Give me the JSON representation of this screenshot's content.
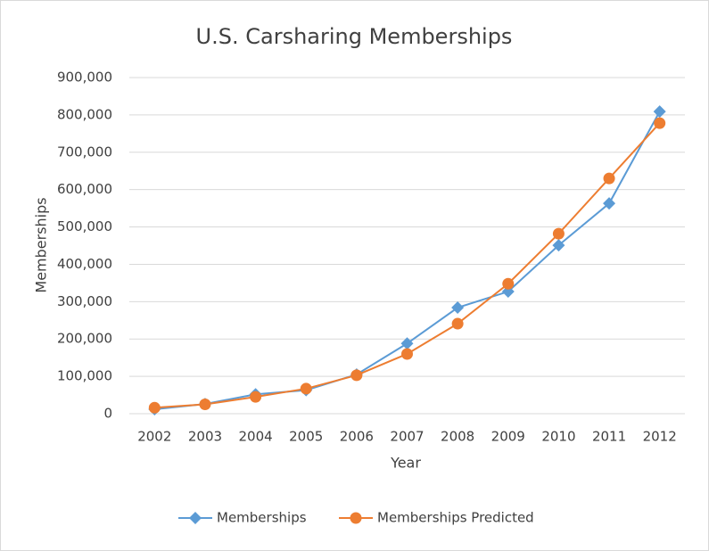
{
  "chart_data": {
    "type": "line",
    "title": "U.S. Carsharing Memberships",
    "x_label": "Year",
    "y_label": "Memberships",
    "categories": [
      "2002",
      "2003",
      "2004",
      "2005",
      "2006",
      "2007",
      "2008",
      "2009",
      "2010",
      "2011",
      "2012"
    ],
    "series": [
      {
        "name": "Memberships",
        "color": "#5b9bd5",
        "marker": "diamond",
        "values": [
          12000,
          26000,
          52000,
          63000,
          105000,
          188000,
          284000,
          327000,
          451000,
          563000,
          809000
        ]
      },
      {
        "name": "Memberships Predicted",
        "color": "#ed7d31",
        "marker": "circle",
        "values": [
          16000,
          25000,
          45000,
          67000,
          103000,
          160000,
          241000,
          348000,
          482000,
          630000,
          778000
        ]
      }
    ],
    "ylim": [
      0,
      900000
    ],
    "yticks": [
      0,
      {
        "value": 100000,
        "label": "100,000"
      },
      {
        "value": 200000,
        "label": "200,000"
      },
      {
        "value": 300000,
        "label": "300,000"
      },
      {
        "value": 400000,
        "label": "400,000"
      },
      {
        "value": 500000,
        "label": "500,000"
      },
      {
        "value": 600000,
        "label": "600,000"
      },
      {
        "value": 700000,
        "label": "700,000"
      },
      {
        "value": 800000,
        "label": "800,000"
      },
      {
        "value": 900000,
        "label": "900,000"
      }
    ],
    "grid": true,
    "legend": "bottom"
  }
}
